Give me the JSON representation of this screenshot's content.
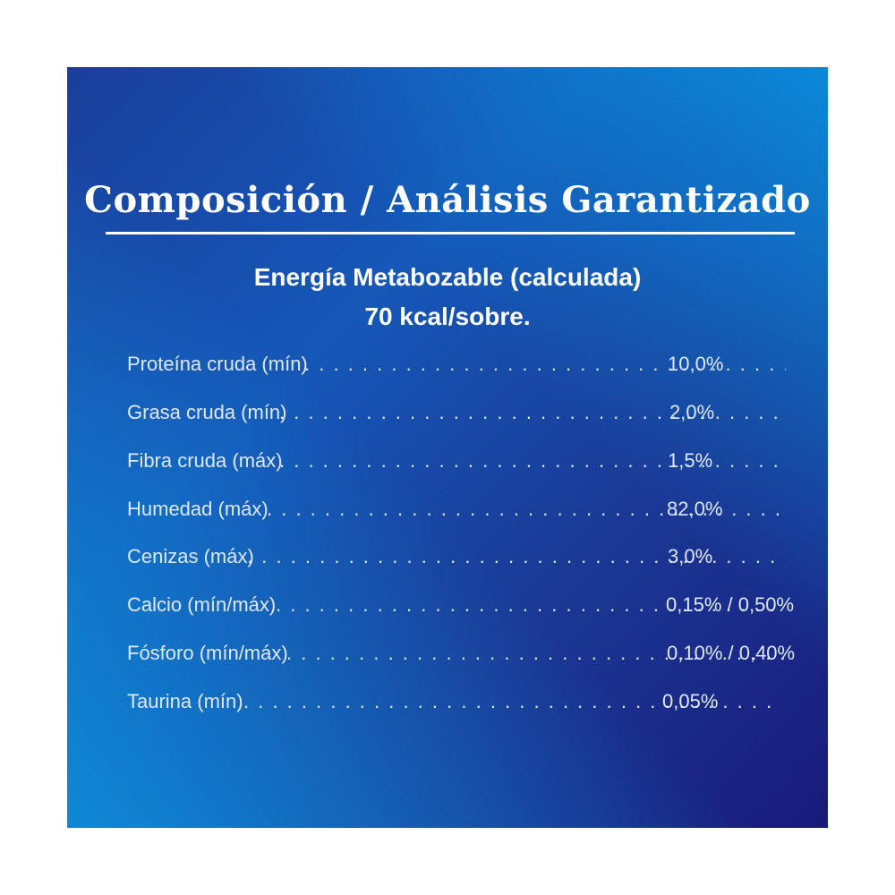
{
  "title": "Composición / Análisis Garantizado",
  "energy": {
    "line1": "Energía Metabozable (calculada)",
    "line2": "70 kcal/sobre."
  },
  "rows": [
    {
      "label": "Proteína cruda (mín)",
      "value": "10,0%"
    },
    {
      "label": "Grasa cruda (mín)",
      "value": "2,0%"
    },
    {
      "label": "Fibra cruda (máx)",
      "value": "1,5%"
    },
    {
      "label": "Humedad (máx)",
      "value": "82,0%"
    },
    {
      "label": "Cenizas (máx)",
      "value": "3,0%"
    },
    {
      "label": "Calcio (mín/máx)",
      "value": "0,15% / 0,50%"
    },
    {
      "label": "Fósforo (mín/máx)",
      "value": "0,10% / 0,40%"
    },
    {
      "label": "Taurina (mín)",
      "value": "0,05%"
    }
  ]
}
